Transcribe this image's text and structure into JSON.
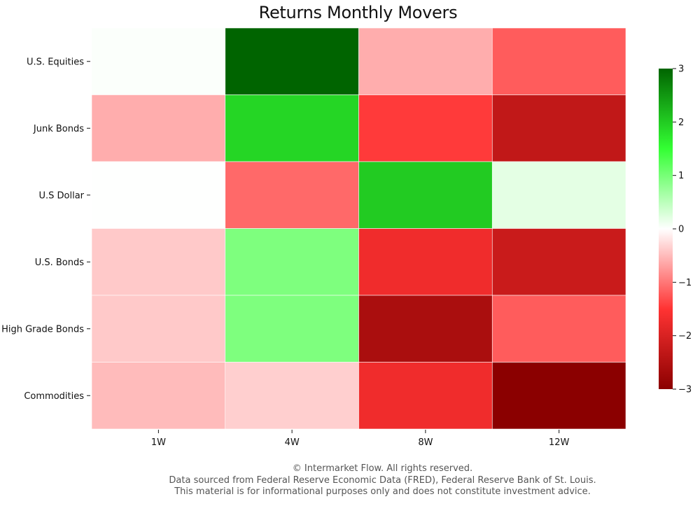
{
  "chart_data": {
    "type": "heatmap",
    "title": "Returns Monthly Movers",
    "rows": [
      "U.S. Equities",
      "Junk Bonds",
      "U.S Dollar",
      "U.S. Bonds",
      "High Grade Bonds",
      "Commodities"
    ],
    "columns": [
      "1W",
      "4W",
      "8W",
      "12W"
    ],
    "values": [
      [
        0.03,
        3.0,
        -0.6,
        -1.2
      ],
      [
        -0.6,
        1.9,
        -1.45,
        -2.3
      ],
      [
        0.01,
        -1.1,
        2.0,
        0.2
      ],
      [
        -0.4,
        0.95,
        -1.7,
        -2.2
      ],
      [
        -0.4,
        0.95,
        -2.6,
        -1.2
      ],
      [
        -0.5,
        -0.35,
        -1.7,
        -3.0
      ]
    ],
    "colorbar": {
      "min": -3,
      "max": 3,
      "ticks": [
        3,
        2,
        1,
        0,
        -1,
        -2,
        -3
      ],
      "tick_labels": [
        "3",
        "2",
        "1",
        "0",
        "−1",
        "−2",
        "−3"
      ],
      "colors": [
        "#8b0000",
        "#ff3333",
        "#ffffff",
        "#33ff33",
        "#006400"
      ]
    },
    "legend": "right",
    "grid": false
  },
  "footer": {
    "line1": "© Intermarket Flow. All rights reserved.",
    "line2": "Data sourced from Federal Reserve Economic Data (FRED), Federal Reserve Bank of St. Louis.",
    "line3": "This material is for informational purposes only and does not constitute investment advice."
  }
}
